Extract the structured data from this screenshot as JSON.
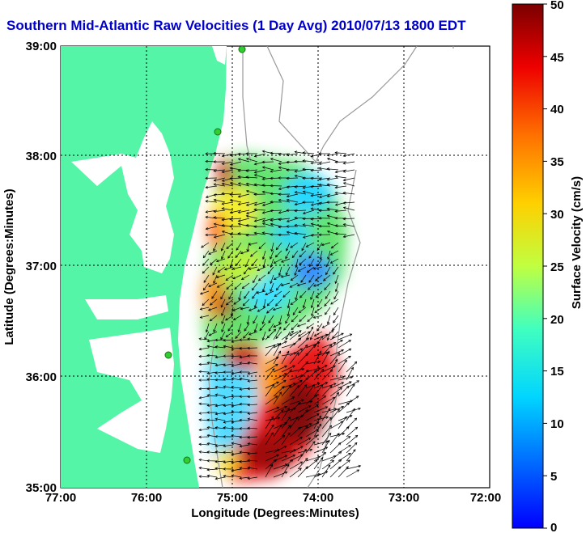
{
  "title": "Southern Mid-Atlantic Raw Velocities (1 Day Avg) 2010/07/13 1800 EDT",
  "xaxis": {
    "label": "Longitude (Degrees:Minutes)",
    "ticks": [
      "77:00",
      "76:00",
      "75:00",
      "74:00",
      "73:00",
      "72:00"
    ]
  },
  "yaxis": {
    "label": "Latitude (Degrees:Minutes)",
    "ticks": [
      "39:00",
      "38:00",
      "37:00",
      "36:00",
      "35:00"
    ]
  },
  "colorbar": {
    "label": "Surface Velocity (cm/s)",
    "ticks": [
      "50",
      "45",
      "40",
      "35",
      "30",
      "25",
      "20",
      "15",
      "10",
      "5",
      "0"
    ]
  },
  "colors": {
    "land": "#55f5a8",
    "title": "#0000cc",
    "coast_contour": "#999999"
  }
}
